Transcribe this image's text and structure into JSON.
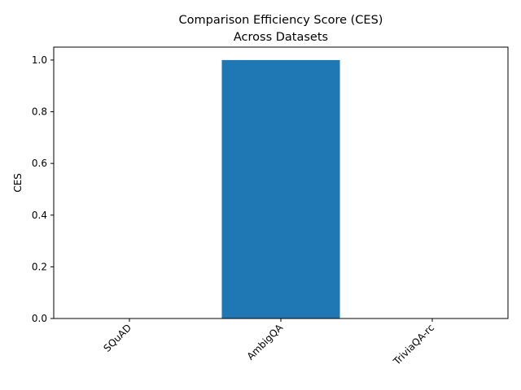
{
  "chart_data": {
    "type": "bar",
    "title": "Comparison Efficiency Score (CES)\nAcross Datasets",
    "xlabel": "",
    "ylabel": "CES",
    "categories": [
      "SQuAD",
      "AmbigQA",
      "TriviaQA-rc"
    ],
    "values": [
      0,
      1.0,
      0
    ],
    "ylim": [
      0,
      1.05
    ],
    "yticks": [
      "0.0",
      "0.2",
      "0.4",
      "0.6",
      "0.8",
      "1.0"
    ],
    "bar_color": "#1f77b4",
    "grid": false,
    "legend": "none"
  }
}
